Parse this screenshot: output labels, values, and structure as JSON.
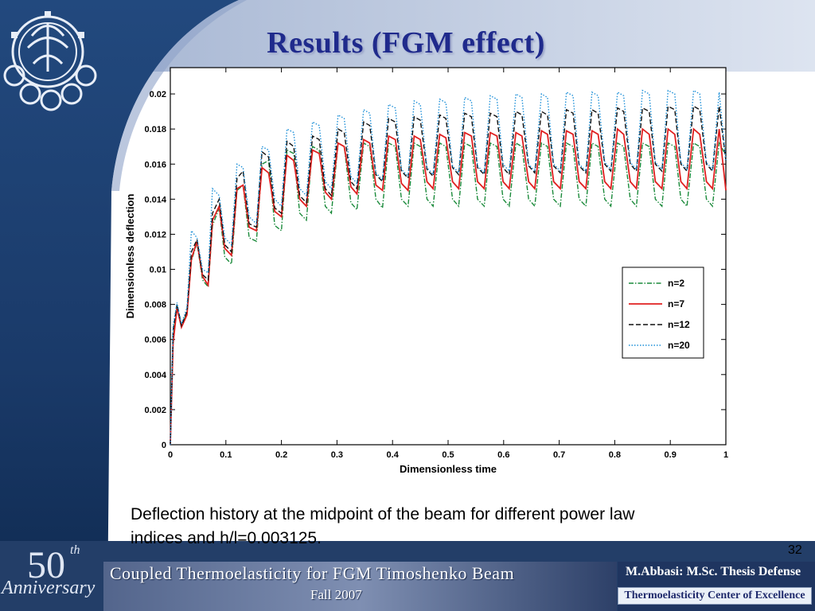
{
  "slide": {
    "title": "Results (FGM effect)",
    "caption_line1": "Deflection history at  the midpoint of the beam for different power law",
    "caption_line2": "indices and h/l=0.003125.",
    "page_number": "32"
  },
  "footer": {
    "anniversary_number": "50",
    "anniversary_superscript": "th",
    "anniversary_word": "Anniversary",
    "title": "Coupled Thermoelasticity for FGM Timoshenko Beam",
    "term": "Fall 2007",
    "author": "M.Abbasi: M.Sc. Thesis Defense",
    "center": "Thermoelasticity Center of Excellence"
  },
  "colors": {
    "title": "#1f2a8c",
    "background_top": "#c9d3e6",
    "background_left": "#1b3f73",
    "footer_band": "#3a4f7a"
  },
  "chart_data": {
    "type": "line",
    "title": "",
    "xlabel": "Dimensionless time",
    "ylabel": "Dimensionless deflection",
    "xlim": [
      0,
      1
    ],
    "ylim": [
      0,
      0.0215
    ],
    "xticks": [
      "0",
      "0.1",
      "0.2",
      "0.3",
      "0.4",
      "0.5",
      "0.6",
      "0.7",
      "0.8",
      "0.9",
      "1"
    ],
    "yticks": [
      "0",
      "0.002",
      "0.004",
      "0.006",
      "0.008",
      "0.01",
      "0.012",
      "0.014",
      "0.016",
      "0.018",
      "0.02"
    ],
    "grid": false,
    "legend_position": "right-center",
    "series": [
      {
        "name": "n=2",
        "color": "#1a8a3a",
        "style": "dashdot",
        "x": [
          0,
          0.005,
          0.012,
          0.02,
          0.03,
          0.038,
          0.048,
          0.058,
          0.068,
          0.076,
          0.088,
          0.098,
          0.11,
          0.12,
          0.131,
          0.142,
          0.155,
          0.165,
          0.177,
          0.188,
          0.2,
          0.21,
          0.222,
          0.233,
          0.245,
          0.256,
          0.268,
          0.279,
          0.29,
          0.302,
          0.313,
          0.325,
          0.336,
          0.348,
          0.359,
          0.37,
          0.382,
          0.393,
          0.405,
          0.416,
          0.428,
          0.439,
          0.45,
          0.462,
          0.473,
          0.485,
          0.496,
          0.508,
          0.519,
          0.53,
          0.542,
          0.553,
          0.565,
          0.576,
          0.588,
          0.599,
          0.61,
          0.622,
          0.633,
          0.645,
          0.656,
          0.668,
          0.679,
          0.69,
          0.702,
          0.713,
          0.725,
          0.736,
          0.748,
          0.759,
          0.77,
          0.782,
          0.793,
          0.805,
          0.816,
          0.828,
          0.839,
          0.85,
          0.862,
          0.873,
          0.885,
          0.896,
          0.908,
          0.919,
          0.93,
          0.942,
          0.953,
          0.965,
          0.976,
          0.988,
          1.0
        ],
        "y": [
          0,
          0.0062,
          0.0079,
          0.0068,
          0.0075,
          0.0105,
          0.0115,
          0.0094,
          0.009,
          0.0125,
          0.0135,
          0.0107,
          0.0103,
          0.0145,
          0.0148,
          0.0118,
          0.0116,
          0.016,
          0.0162,
          0.0125,
          0.0122,
          0.0168,
          0.0166,
          0.0132,
          0.0128,
          0.017,
          0.0168,
          0.0136,
          0.0132,
          0.0172,
          0.017,
          0.0138,
          0.0134,
          0.0172,
          0.017,
          0.014,
          0.0135,
          0.0172,
          0.017,
          0.014,
          0.0136,
          0.0172,
          0.017,
          0.014,
          0.0136,
          0.0172,
          0.017,
          0.014,
          0.0136,
          0.0172,
          0.017,
          0.014,
          0.0136,
          0.0172,
          0.017,
          0.014,
          0.0136,
          0.0172,
          0.017,
          0.014,
          0.0136,
          0.0172,
          0.017,
          0.014,
          0.0136,
          0.0172,
          0.017,
          0.014,
          0.0136,
          0.0172,
          0.017,
          0.014,
          0.0136,
          0.0172,
          0.017,
          0.014,
          0.0136,
          0.0172,
          0.017,
          0.014,
          0.0136,
          0.0172,
          0.017,
          0.014,
          0.0136,
          0.0172,
          0.017,
          0.014,
          0.0136,
          0.0172,
          0.0165
        ]
      },
      {
        "name": "n=7",
        "color": "#e02020",
        "style": "solid",
        "x": [
          0,
          0.005,
          0.012,
          0.02,
          0.03,
          0.038,
          0.048,
          0.058,
          0.068,
          0.076,
          0.088,
          0.098,
          0.11,
          0.12,
          0.131,
          0.142,
          0.155,
          0.165,
          0.177,
          0.188,
          0.2,
          0.21,
          0.222,
          0.233,
          0.245,
          0.256,
          0.268,
          0.279,
          0.29,
          0.302,
          0.313,
          0.325,
          0.336,
          0.348,
          0.359,
          0.37,
          0.382,
          0.393,
          0.405,
          0.416,
          0.428,
          0.439,
          0.45,
          0.462,
          0.473,
          0.485,
          0.496,
          0.508,
          0.519,
          0.53,
          0.542,
          0.553,
          0.565,
          0.576,
          0.588,
          0.599,
          0.61,
          0.622,
          0.633,
          0.645,
          0.656,
          0.668,
          0.679,
          0.69,
          0.702,
          0.713,
          0.725,
          0.736,
          0.748,
          0.759,
          0.77,
          0.782,
          0.793,
          0.805,
          0.816,
          0.828,
          0.839,
          0.85,
          0.862,
          0.873,
          0.885,
          0.896,
          0.908,
          0.919,
          0.93,
          0.942,
          0.953,
          0.965,
          0.976,
          0.988,
          1.0
        ],
        "y": [
          0,
          0.0058,
          0.0078,
          0.0067,
          0.0074,
          0.0106,
          0.0116,
          0.0096,
          0.0091,
          0.0128,
          0.0136,
          0.0112,
          0.0108,
          0.0146,
          0.0148,
          0.0124,
          0.0122,
          0.0158,
          0.0155,
          0.0133,
          0.013,
          0.0165,
          0.0162,
          0.014,
          0.0136,
          0.0168,
          0.0166,
          0.0144,
          0.014,
          0.0172,
          0.017,
          0.0147,
          0.0143,
          0.0174,
          0.0172,
          0.0148,
          0.0145,
          0.0176,
          0.0174,
          0.0149,
          0.0145,
          0.0176,
          0.0174,
          0.015,
          0.0146,
          0.0177,
          0.0175,
          0.015,
          0.0146,
          0.0178,
          0.0176,
          0.015,
          0.0146,
          0.0178,
          0.0176,
          0.015,
          0.0146,
          0.0178,
          0.0176,
          0.015,
          0.0146,
          0.0179,
          0.0177,
          0.015,
          0.0146,
          0.0179,
          0.0177,
          0.015,
          0.0146,
          0.0179,
          0.0177,
          0.015,
          0.0146,
          0.018,
          0.0177,
          0.015,
          0.0146,
          0.018,
          0.0177,
          0.015,
          0.0146,
          0.018,
          0.0177,
          0.015,
          0.0146,
          0.018,
          0.0177,
          0.015,
          0.0146,
          0.018,
          0.0145
        ]
      },
      {
        "name": "n=12",
        "color": "#111111",
        "style": "dashed",
        "x": [
          0,
          0.005,
          0.012,
          0.02,
          0.03,
          0.038,
          0.048,
          0.058,
          0.068,
          0.076,
          0.088,
          0.098,
          0.11,
          0.12,
          0.131,
          0.142,
          0.155,
          0.165,
          0.177,
          0.188,
          0.2,
          0.21,
          0.222,
          0.233,
          0.245,
          0.256,
          0.268,
          0.279,
          0.29,
          0.302,
          0.313,
          0.325,
          0.336,
          0.348,
          0.359,
          0.37,
          0.382,
          0.393,
          0.405,
          0.416,
          0.428,
          0.439,
          0.45,
          0.462,
          0.473,
          0.485,
          0.496,
          0.508,
          0.519,
          0.53,
          0.542,
          0.553,
          0.565,
          0.576,
          0.588,
          0.599,
          0.61,
          0.622,
          0.633,
          0.645,
          0.656,
          0.668,
          0.679,
          0.69,
          0.702,
          0.713,
          0.725,
          0.736,
          0.748,
          0.759,
          0.77,
          0.782,
          0.793,
          0.805,
          0.816,
          0.828,
          0.839,
          0.85,
          0.862,
          0.873,
          0.885,
          0.896,
          0.908,
          0.919,
          0.93,
          0.942,
          0.953,
          0.965,
          0.976,
          0.988,
          1.0
        ],
        "y": [
          0,
          0.0065,
          0.008,
          0.0068,
          0.0076,
          0.011,
          0.0117,
          0.0097,
          0.0094,
          0.0132,
          0.014,
          0.0114,
          0.011,
          0.0152,
          0.0156,
          0.0126,
          0.0124,
          0.0167,
          0.0164,
          0.0135,
          0.0132,
          0.0173,
          0.017,
          0.0142,
          0.0138,
          0.0176,
          0.0174,
          0.0146,
          0.0142,
          0.018,
          0.0178,
          0.015,
          0.0146,
          0.0184,
          0.0182,
          0.0154,
          0.015,
          0.0186,
          0.0184,
          0.0156,
          0.0152,
          0.0187,
          0.0185,
          0.0157,
          0.0153,
          0.0188,
          0.0186,
          0.0158,
          0.0154,
          0.0189,
          0.0187,
          0.0158,
          0.0154,
          0.0189,
          0.0187,
          0.0158,
          0.0154,
          0.019,
          0.0188,
          0.0159,
          0.0155,
          0.019,
          0.0188,
          0.0159,
          0.0155,
          0.0191,
          0.0189,
          0.0159,
          0.0155,
          0.0191,
          0.0189,
          0.016,
          0.0156,
          0.0192,
          0.019,
          0.016,
          0.0156,
          0.0192,
          0.019,
          0.016,
          0.0156,
          0.0193,
          0.0191,
          0.016,
          0.0156,
          0.0193,
          0.0191,
          0.016,
          0.0156,
          0.0193,
          0.0162
        ]
      },
      {
        "name": "n=20",
        "color": "#1e90d8",
        "style": "dotted",
        "x": [
          0,
          0.005,
          0.012,
          0.02,
          0.03,
          0.038,
          0.048,
          0.058,
          0.068,
          0.076,
          0.088,
          0.098,
          0.11,
          0.12,
          0.131,
          0.142,
          0.155,
          0.165,
          0.177,
          0.188,
          0.2,
          0.21,
          0.222,
          0.233,
          0.245,
          0.256,
          0.268,
          0.279,
          0.29,
          0.302,
          0.313,
          0.325,
          0.336,
          0.348,
          0.359,
          0.37,
          0.382,
          0.393,
          0.405,
          0.416,
          0.428,
          0.439,
          0.45,
          0.462,
          0.473,
          0.485,
          0.496,
          0.508,
          0.519,
          0.53,
          0.542,
          0.553,
          0.565,
          0.576,
          0.588,
          0.599,
          0.61,
          0.622,
          0.633,
          0.645,
          0.656,
          0.668,
          0.679,
          0.69,
          0.702,
          0.713,
          0.725,
          0.736,
          0.748,
          0.759,
          0.77,
          0.782,
          0.793,
          0.805,
          0.816,
          0.828,
          0.839,
          0.85,
          0.862,
          0.873,
          0.885,
          0.896,
          0.908,
          0.919,
          0.93,
          0.942,
          0.953,
          0.965,
          0.976,
          0.988,
          1.0
        ],
        "y": [
          0,
          0.0068,
          0.0081,
          0.0069,
          0.0078,
          0.0122,
          0.0118,
          0.01,
          0.0098,
          0.0146,
          0.0142,
          0.0118,
          0.0114,
          0.016,
          0.0158,
          0.013,
          0.0126,
          0.017,
          0.0168,
          0.014,
          0.0136,
          0.018,
          0.0178,
          0.0146,
          0.0142,
          0.0184,
          0.0182,
          0.015,
          0.0146,
          0.0188,
          0.0186,
          0.0153,
          0.0149,
          0.0191,
          0.0189,
          0.0155,
          0.0151,
          0.0194,
          0.0192,
          0.0157,
          0.0153,
          0.0196,
          0.0194,
          0.0158,
          0.0154,
          0.0197,
          0.0195,
          0.0159,
          0.0155,
          0.0198,
          0.0196,
          0.0159,
          0.0155,
          0.0199,
          0.0197,
          0.016,
          0.0156,
          0.02,
          0.0198,
          0.016,
          0.0156,
          0.02,
          0.0198,
          0.016,
          0.0156,
          0.0201,
          0.0199,
          0.016,
          0.0156,
          0.0201,
          0.0199,
          0.0161,
          0.0157,
          0.0201,
          0.0199,
          0.0161,
          0.0157,
          0.0202,
          0.02,
          0.0161,
          0.0157,
          0.0202,
          0.02,
          0.0161,
          0.0157,
          0.0202,
          0.02,
          0.0161,
          0.0157,
          0.0201,
          0.0162
        ]
      }
    ]
  }
}
